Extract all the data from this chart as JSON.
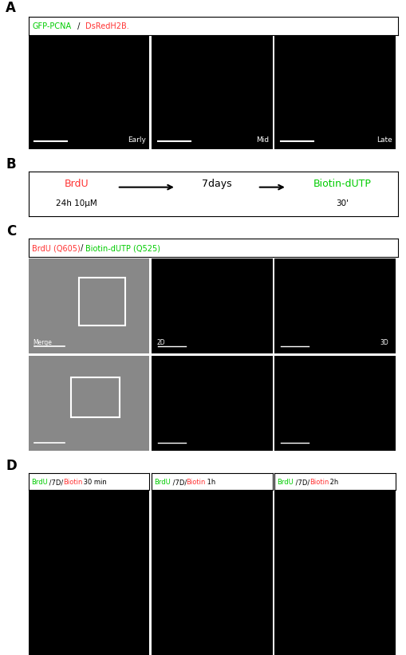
{
  "panel_A_label": "A",
  "panel_B_label": "B",
  "panel_C_label": "C",
  "panel_D_label": "D",
  "panel_A_header_green": "GFP-PCNA",
  "panel_A_header_sep": " / ",
  "panel_A_header_red": "DsRedH2B.",
  "panel_A_labels": [
    "Early",
    "Mid",
    "Late"
  ],
  "panel_B_brdu_label": "BrdU",
  "panel_B_brdu_sub": "24h 10μM",
  "panel_B_days": "7days",
  "panel_B_biotin": "Biotin-dUTP",
  "panel_B_biotin_sub": "30'",
  "panel_C_header_red": "BrdU (Q605)",
  "panel_C_header_sep": " / ",
  "panel_C_header_green": "Biotin-dUTP (Q525)",
  "panel_C_merge": "Merge",
  "panel_C_2D": "2D",
  "panel_C_3D": "3D",
  "color_green": "#00cc00",
  "color_red": "#ff3333",
  "color_black": "#000000",
  "color_white": "#ffffff",
  "bg_color": "#ffffff",
  "img_bg_black": "#000000",
  "img_bg_gray": "#888888",
  "panel_label_fontsize": 12,
  "header_fontsize": 7,
  "label_fontsize": 6.5,
  "border_lw": 0.8
}
